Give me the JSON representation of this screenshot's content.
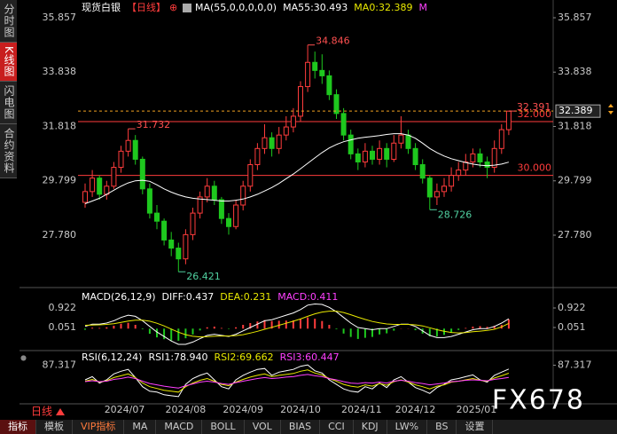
{
  "sidebar": {
    "tabs": [
      "分时图",
      "K线图",
      "闪电图",
      "合约资料"
    ]
  },
  "chart_data": [
    {
      "type": "candlestick",
      "title": "现货白银",
      "period": "【日线】",
      "indicator": "MA(55,0,0,0,0,0)",
      "header_items": [
        {
          "text": "MA0:32.389",
          "color": "#e8e800"
        },
        {
          "text": "M",
          "color": "#ff40ff"
        }
      ],
      "x": [
        null,
        null,
        "2024/07",
        "2024/07",
        "2024/07",
        "2024/07",
        "2024/07",
        "2024/07",
        "2024/07",
        "2024/07",
        "2024/08",
        "2024/08",
        "2024/08",
        "2024/08",
        "2024/08",
        "2024/08",
        "2024/08",
        "2024/08",
        "2024/08",
        "2024/09",
        "2024/09",
        "2024/09",
        "2024/09",
        "2024/09",
        "2024/09",
        "2024/09",
        "2024/10",
        "2024/10",
        "2024/10",
        "2024/10",
        "2024/10",
        "2024/10",
        "2024/10",
        "2024/10",
        "2024/10",
        "2024/11",
        "2024/11",
        "2024/11",
        "2024/11",
        "2024/11",
        "2024/11",
        "2024/11",
        "2024/11",
        "2024/12",
        "2024/12",
        "2024/12",
        "2024/12",
        "2024/12",
        "2024/12",
        "2024/12",
        "2025/01",
        "2025/01",
        "2025/01",
        "2025/01",
        "2025/01",
        "2025/01",
        "2025/01",
        "2025/01",
        "2025/01",
        "2025/01"
      ],
      "candles": [
        [
          29.0,
          29.7,
          28.8,
          29.4
        ],
        [
          29.4,
          30.2,
          29.2,
          29.9
        ],
        [
          29.9,
          30.0,
          29.1,
          29.3
        ],
        [
          29.3,
          29.8,
          29.1,
          29.6
        ],
        [
          29.6,
          30.5,
          29.5,
          30.3
        ],
        [
          30.3,
          31.1,
          30.1,
          30.9
        ],
        [
          30.9,
          31.732,
          30.7,
          31.3
        ],
        [
          31.3,
          31.5,
          30.4,
          30.6
        ],
        [
          30.6,
          30.7,
          29.3,
          29.5
        ],
        [
          29.5,
          29.7,
          28.4,
          28.6
        ],
        [
          28.6,
          28.9,
          28.0,
          28.3
        ],
        [
          28.3,
          28.4,
          27.4,
          27.6
        ],
        [
          27.6,
          27.9,
          27.0,
          27.3
        ],
        [
          27.3,
          27.5,
          26.421,
          26.9
        ],
        [
          26.9,
          28.0,
          26.7,
          27.8
        ],
        [
          27.8,
          28.8,
          27.6,
          28.6
        ],
        [
          28.6,
          29.4,
          28.4,
          29.2
        ],
        [
          29.2,
          29.9,
          29.0,
          29.6
        ],
        [
          29.6,
          29.8,
          28.9,
          29.1
        ],
        [
          29.1,
          29.2,
          28.2,
          28.4
        ],
        [
          28.4,
          28.6,
          27.8,
          28.1
        ],
        [
          28.1,
          29.1,
          28.0,
          28.9
        ],
        [
          28.9,
          29.8,
          28.7,
          29.6
        ],
        [
          29.6,
          30.6,
          29.4,
          30.4
        ],
        [
          30.4,
          31.2,
          30.2,
          31.0
        ],
        [
          31.0,
          31.9,
          30.8,
          31.4
        ],
        [
          31.4,
          31.6,
          30.7,
          31.0
        ],
        [
          31.0,
          31.8,
          30.8,
          31.5
        ],
        [
          31.5,
          32.2,
          31.3,
          31.8
        ],
        [
          31.8,
          32.5,
          31.6,
          32.2
        ],
        [
          32.2,
          33.5,
          32.0,
          33.3
        ],
        [
          33.3,
          34.846,
          33.1,
          34.2
        ],
        [
          34.2,
          34.6,
          33.6,
          33.9
        ],
        [
          33.9,
          34.5,
          33.4,
          33.7
        ],
        [
          33.7,
          33.9,
          32.8,
          33.0
        ],
        [
          33.0,
          33.2,
          32.1,
          32.3
        ],
        [
          32.3,
          32.5,
          31.3,
          31.5
        ],
        [
          31.5,
          31.7,
          30.6,
          30.8
        ],
        [
          30.8,
          31.0,
          30.2,
          30.5
        ],
        [
          30.5,
          31.2,
          30.3,
          30.9
        ],
        [
          30.9,
          31.1,
          30.4,
          30.6
        ],
        [
          30.6,
          31.3,
          30.4,
          31.0
        ],
        [
          31.0,
          31.2,
          30.3,
          30.6
        ],
        [
          30.6,
          31.5,
          30.5,
          31.2
        ],
        [
          31.2,
          32.2,
          31.0,
          31.5
        ],
        [
          31.5,
          31.7,
          30.8,
          31.0
        ],
        [
          31.0,
          31.2,
          30.2,
          30.4
        ],
        [
          30.4,
          30.6,
          29.7,
          29.9
        ],
        [
          29.9,
          30.0,
          28.726,
          29.2
        ],
        [
          29.2,
          29.7,
          28.9,
          29.4
        ],
        [
          29.4,
          29.9,
          29.2,
          29.6
        ],
        [
          29.6,
          30.3,
          29.4,
          30.0
        ],
        [
          30.0,
          30.5,
          29.8,
          30.2
        ],
        [
          30.2,
          30.8,
          30.0,
          30.5
        ],
        [
          30.5,
          31.0,
          30.3,
          30.8
        ],
        [
          30.8,
          31.0,
          30.3,
          30.5
        ],
        [
          30.5,
          30.7,
          29.9,
          30.3
        ],
        [
          30.3,
          31.3,
          30.1,
          31.0
        ],
        [
          31.0,
          31.9,
          30.8,
          31.7
        ],
        [
          31.7,
          32.391,
          31.5,
          32.389
        ]
      ],
      "up_color": "#ff3c3c",
      "down_color": "#1ec81e",
      "series": [
        {
          "name": "MA55:30.493",
          "color": "#ffffff",
          "values": [
            28.95,
            29.05,
            29.15,
            29.3,
            29.45,
            29.6,
            29.72,
            29.8,
            29.82,
            29.78,
            29.65,
            29.5,
            29.38,
            29.28,
            29.2,
            29.15,
            29.12,
            29.1,
            29.08,
            29.05,
            29.05,
            29.08,
            29.12,
            29.2,
            29.3,
            29.42,
            29.55,
            29.7,
            29.88,
            30.05,
            30.25,
            30.45,
            30.65,
            30.85,
            31.02,
            31.15,
            31.25,
            31.32,
            31.38,
            31.42,
            31.45,
            31.48,
            31.52,
            31.55,
            31.55,
            31.5,
            31.38,
            31.2,
            31.0,
            30.85,
            30.72,
            30.62,
            30.55,
            30.48,
            30.42,
            30.38,
            30.36,
            30.38,
            30.42,
            30.493
          ]
        }
      ],
      "hlines": [
        {
          "value": 32,
          "label": "32.000",
          "color": "#ff3c3c"
        },
        {
          "value": 30,
          "label": "30.000",
          "color": "#ff3c3c"
        }
      ],
      "ylim": [
        25.9,
        36.253
      ],
      "yticks": [
        35.857,
        33.838,
        31.818,
        29.799,
        {
          "value": 27.78,
          "label": "27.780"
        }
      ],
      "grid": false
    },
    {
      "type": "macd",
      "title": "MACD(26,12,9)",
      "series": [
        {
          "name": "DIFF:0.437",
          "color": "#ffffff",
          "values": [
            0.1,
            0.2,
            0.2,
            0.25,
            0.35,
            0.5,
            0.6,
            0.55,
            0.35,
            0.1,
            -0.15,
            -0.35,
            -0.55,
            -0.7,
            -0.7,
            -0.6,
            -0.45,
            -0.3,
            -0.25,
            -0.3,
            -0.35,
            -0.25,
            -0.1,
            0.05,
            0.2,
            0.35,
            0.4,
            0.5,
            0.6,
            0.7,
            0.85,
            1.05,
            1.1,
            1.08,
            0.95,
            0.75,
            0.5,
            0.25,
            0.05,
            0.0,
            -0.05,
            0.0,
            0.0,
            0.1,
            0.2,
            0.2,
            0.1,
            -0.1,
            -0.3,
            -0.4,
            -0.4,
            -0.35,
            -0.25,
            -0.15,
            -0.05,
            0.0,
            0.0,
            0.1,
            0.25,
            0.437
          ]
        },
        {
          "name": "DEA:0.231",
          "color": "#e8e800",
          "values": [
            0.15,
            0.16,
            0.17,
            0.19,
            0.22,
            0.28,
            0.34,
            0.38,
            0.38,
            0.33,
            0.24,
            0.12,
            -0.02,
            -0.16,
            -0.27,
            -0.34,
            -0.37,
            -0.36,
            -0.34,
            -0.33,
            -0.33,
            -0.31,
            -0.27,
            -0.2,
            -0.12,
            -0.03,
            0.06,
            0.15,
            0.24,
            0.33,
            0.43,
            0.55,
            0.66,
            0.74,
            0.78,
            0.78,
            0.72,
            0.62,
            0.51,
            0.41,
            0.32,
            0.26,
            0.21,
            0.19,
            0.19,
            0.19,
            0.17,
            0.12,
            0.04,
            -0.05,
            -0.12,
            -0.17,
            -0.19,
            -0.18,
            -0.14,
            -0.11,
            -0.08,
            -0.03,
            0.08,
            0.231
          ]
        },
        {
          "name": "MACD:0.411",
          "style": "bar",
          "color": "#ff40ff",
          "up_color": "#ff3c3c",
          "down_color": "#1ec81e",
          "values": [
            -0.05,
            0.04,
            0.03,
            0.06,
            0.13,
            0.22,
            0.26,
            0.17,
            -0.03,
            -0.23,
            -0.39,
            -0.47,
            -0.53,
            -0.54,
            -0.43,
            -0.26,
            -0.08,
            0.06,
            0.09,
            0.03,
            -0.02,
            0.06,
            0.17,
            0.25,
            0.32,
            0.38,
            0.34,
            0.35,
            0.36,
            0.37,
            0.42,
            0.5,
            0.44,
            0.34,
            0.17,
            -0.03,
            -0.22,
            -0.37,
            -0.46,
            -0.41,
            -0.37,
            -0.26,
            -0.21,
            -0.09,
            0.01,
            0.01,
            -0.07,
            -0.22,
            -0.34,
            -0.35,
            -0.28,
            -0.18,
            -0.06,
            0.03,
            0.09,
            0.11,
            0.08,
            0.13,
            0.17,
            0.411
          ]
        }
      ],
      "ylim": [
        -0.86,
        1.674
      ],
      "yticks": [
        0.922,
        0.051
      ],
      "grid": false
    },
    {
      "type": "line",
      "title": "RSI(6,12,24)",
      "series": [
        {
          "name": "RSI1:78.940",
          "color": "#ffffff",
          "values": [
            55,
            62,
            48,
            55,
            68,
            74,
            78,
            60,
            40,
            30,
            28,
            22,
            20,
            18,
            45,
            58,
            65,
            70,
            55,
            40,
            35,
            55,
            65,
            72,
            78,
            80,
            65,
            72,
            75,
            78,
            85,
            88,
            75,
            70,
            55,
            45,
            35,
            30,
            28,
            40,
            35,
            48,
            38,
            55,
            62,
            50,
            38,
            32,
            25,
            38,
            45,
            55,
            58,
            62,
            66,
            55,
            50,
            65,
            72,
            78.94
          ]
        },
        {
          "name": "RSI2:69.662",
          "color": "#e8e800",
          "values": [
            52,
            56,
            50,
            53,
            60,
            64,
            68,
            60,
            48,
            40,
            36,
            32,
            30,
            28,
            40,
            48,
            54,
            58,
            52,
            45,
            42,
            50,
            56,
            61,
            65,
            68,
            62,
            65,
            67,
            69,
            74,
            77,
            70,
            66,
            58,
            52,
            45,
            41,
            39,
            44,
            41,
            47,
            43,
            51,
            55,
            50,
            44,
            40,
            35,
            41,
            44,
            50,
            52,
            55,
            58,
            54,
            52,
            59,
            64,
            69.662
          ]
        },
        {
          "name": "RSI3:60.447",
          "color": "#ff40ff",
          "values": [
            51,
            53,
            51,
            52,
            56,
            58,
            61,
            58,
            52,
            47,
            44,
            41,
            39,
            37,
            42,
            46,
            50,
            52,
            50,
            47,
            45,
            49,
            52,
            55,
            58,
            60,
            58,
            59,
            61,
            62,
            65,
            67,
            64,
            62,
            58,
            55,
            51,
            48,
            47,
            49,
            48,
            50,
            48,
            52,
            54,
            52,
            49,
            47,
            44,
            46,
            48,
            51,
            52,
            54,
            55,
            54,
            53,
            56,
            58,
            60.447
          ]
        }
      ],
      "ylim": [
        8,
        100
      ],
      "yticks": [
        87.317
      ],
      "grid": false
    }
  ],
  "period_tab": "日线",
  "watermark": "FX678",
  "toolbar": [
    "指标",
    "模板",
    "VIP指标",
    "MA",
    "MACD",
    "BOLL",
    "VOL",
    "BIAS",
    "CCI",
    "KDJ",
    "LW%",
    "BS",
    "设置"
  ]
}
